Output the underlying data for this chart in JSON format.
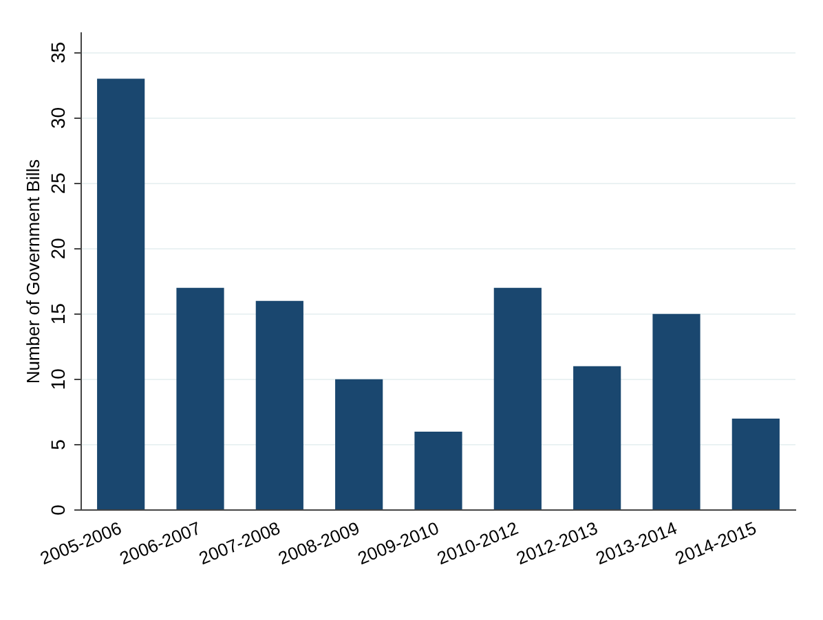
{
  "chart_data": {
    "type": "bar",
    "ylabel": "Number of Government Bills",
    "categories": [
      "2005-2006",
      "2006-2007",
      "2007-2008",
      "2008-2009",
      "2009-2010",
      "2010-2012",
      "2012-2013",
      "2013-2014",
      "2014-2015"
    ],
    "values": [
      33,
      17,
      16,
      10,
      6,
      17,
      11,
      15,
      7
    ],
    "color": "#1a476f",
    "ylim": [
      0,
      36.5
    ],
    "yticks": [
      0,
      5,
      10,
      15,
      20,
      25,
      30,
      35
    ],
    "grid": "y"
  }
}
